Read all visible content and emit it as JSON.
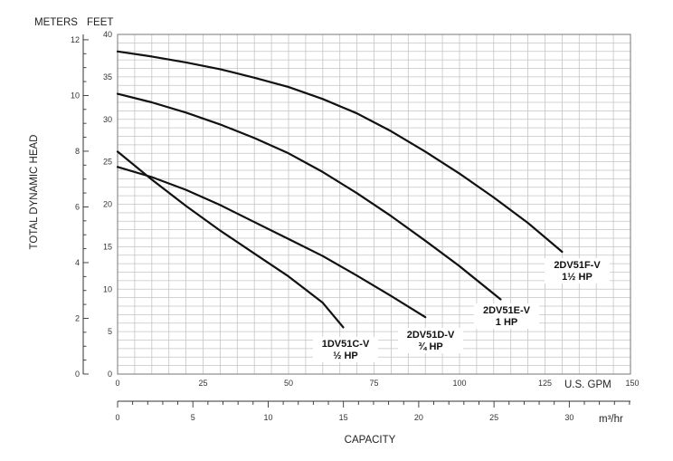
{
  "chart_data": {
    "type": "line",
    "title": "",
    "labels": {
      "meters_header": "METERS",
      "feet_header": "FEET",
      "y_title": "TOTAL DYNAMIC HEAD",
      "x_title": "CAPACITY",
      "gpm_unit": "U.S. GPM",
      "m3_unit": "m³/hr"
    },
    "x_gpm_ticks": [
      "0",
      "25",
      "50",
      "75",
      "100",
      "125",
      "150"
    ],
    "x_m3_ticks": [
      "0",
      "5",
      "10",
      "15",
      "20",
      "25",
      "30"
    ],
    "y_feet_ticks": [
      "0",
      "5",
      "10",
      "15",
      "20",
      "25",
      "30",
      "35",
      "40"
    ],
    "y_meters_ticks": [
      "0",
      "2",
      "4",
      "6",
      "8",
      "10",
      "12"
    ],
    "xlim_gpm": [
      0,
      150
    ],
    "ylim_feet": [
      0,
      40
    ],
    "grid": true,
    "series": [
      {
        "model": "1DV51C-V",
        "hp": "½ HP",
        "x": [
          0,
          10,
          20,
          30,
          40,
          50,
          60,
          66
        ],
        "y": [
          26.2,
          22.9,
          19.8,
          16.9,
          14.2,
          11.5,
          8.4,
          5.5
        ]
      },
      {
        "model": "2DV51D-V",
        "hp": "¾ HP",
        "x": [
          0,
          10,
          20,
          30,
          40,
          50,
          60,
          70,
          80,
          90
        ],
        "y": [
          24.4,
          23.2,
          21.7,
          19.9,
          17.9,
          15.9,
          13.9,
          11.6,
          9.2,
          6.7
        ]
      },
      {
        "model": "2DV51E-V",
        "hp": "1 HP",
        "x": [
          0,
          10,
          20,
          30,
          40,
          50,
          60,
          70,
          80,
          90,
          100,
          112
        ],
        "y": [
          33.0,
          32.0,
          30.8,
          29.4,
          27.8,
          26.0,
          23.8,
          21.3,
          18.6,
          15.7,
          12.7,
          8.8
        ]
      },
      {
        "model": "2DV51F-V",
        "hp": "1½ HP",
        "x": [
          0,
          10,
          20,
          30,
          40,
          50,
          60,
          70,
          80,
          90,
          100,
          110,
          120,
          130
        ],
        "y": [
          38.0,
          37.4,
          36.7,
          35.9,
          34.9,
          33.8,
          32.4,
          30.7,
          28.6,
          26.2,
          23.6,
          20.8,
          17.8,
          14.4
        ]
      }
    ]
  }
}
